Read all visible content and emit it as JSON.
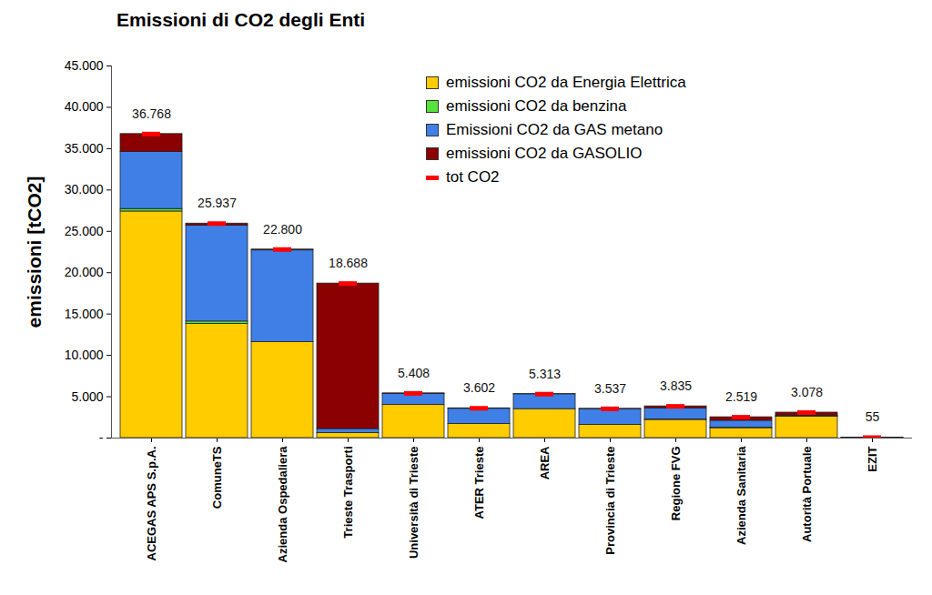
{
  "chart_data": {
    "type": "bar",
    "title": "Emissioni di CO2 degli Enti",
    "ylabel": "emissioni [tCO2]",
    "stacked": true,
    "legend": "upper right",
    "grid": false,
    "data_labels": true,
    "categories": [
      "ACEGAS APS S.p.A.",
      "ComuneTS",
      "Azienda Ospedaliera",
      "Trieste Trasporti",
      "Università di Trieste",
      "ATER Trieste",
      "AREA",
      "Provincia di Trieste",
      "Regione FVG",
      "Azienda Sanitaria",
      "Autorità Portuale",
      "EZIT"
    ],
    "series": [
      {
        "name": "emissioni CO2 da Energia Elettrica",
        "type": "bar",
        "color": "#ffcc00",
        "values": [
          27400,
          13800,
          11600,
          600,
          4000,
          1700,
          3500,
          1600,
          2200,
          1200,
          2600,
          40
        ]
      },
      {
        "name": "emissioni CO2 da benzina",
        "type": "bar",
        "color": "#55e23a",
        "values": [
          300,
          300,
          0,
          0,
          0,
          0,
          0,
          0,
          50,
          50,
          20,
          0
        ]
      },
      {
        "name": "Emissioni CO2 da GAS metano",
        "type": "bar",
        "color": "#3f7fe6",
        "values": [
          6900,
          11600,
          11100,
          500,
          1350,
          1850,
          1800,
          1900,
          1350,
          850,
          100,
          10
        ]
      },
      {
        "name": "emissioni CO2 da GASOLIO",
        "type": "bar",
        "color": "#8b0000",
        "values": [
          2168,
          237,
          100,
          17588,
          58,
          52,
          13,
          37,
          235,
          419,
          358,
          5
        ]
      },
      {
        "name": "tot CO2",
        "type": "marker",
        "marker": "dash",
        "color": "#ff0000",
        "values": [
          36768,
          25937,
          22800,
          18688,
          5408,
          3602,
          5313,
          3537,
          3835,
          2519,
          3078,
          55
        ],
        "value_labels": [
          "36.768",
          "25.937",
          "22.800",
          "18.688",
          "5.408",
          "3.602",
          "5.313",
          "3.537",
          "3.835",
          "2.519",
          "3.078",
          "55"
        ]
      }
    ],
    "ylim": [
      0,
      45000
    ],
    "yticks": [
      {
        "value": 0,
        "label": "-"
      },
      {
        "value": 5000,
        "label": "5.000"
      },
      {
        "value": 10000,
        "label": "10.000"
      },
      {
        "value": 15000,
        "label": "15.000"
      },
      {
        "value": 20000,
        "label": "20.000"
      },
      {
        "value": 25000,
        "label": "25.000"
      },
      {
        "value": 30000,
        "label": "30.000"
      },
      {
        "value": 35000,
        "label": "35.000"
      },
      {
        "value": 40000,
        "label": "40.000"
      },
      {
        "value": 45000,
        "label": "45.000"
      }
    ]
  }
}
